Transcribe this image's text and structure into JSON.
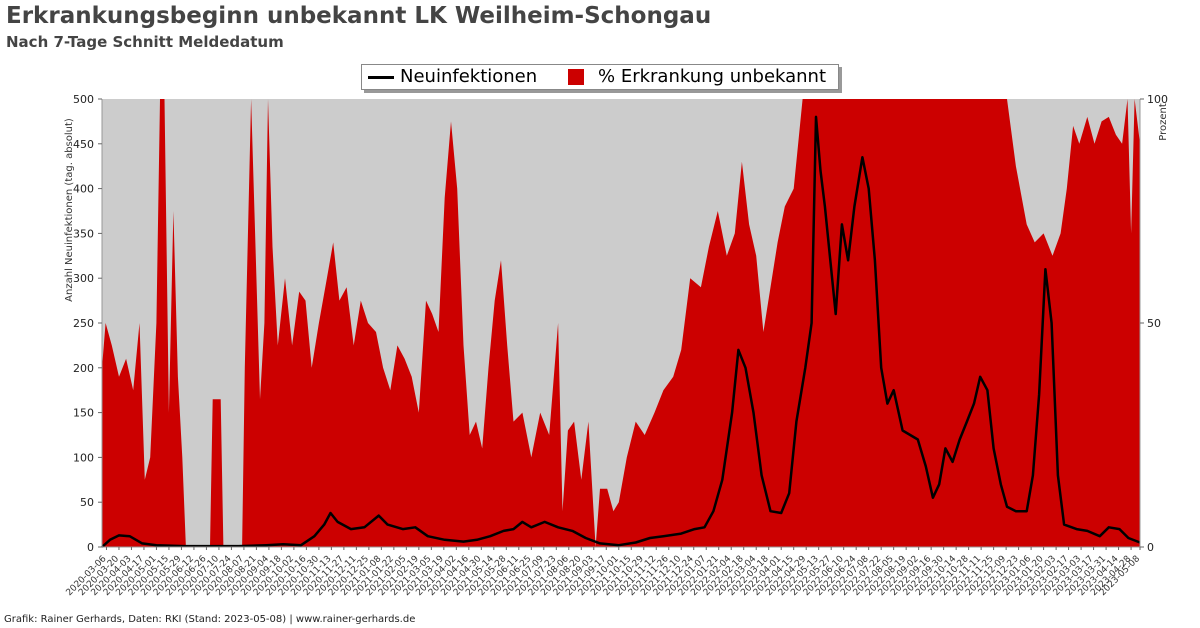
{
  "title": "Erkrankungsbeginn unbekannt LK Weilheim-Schongau",
  "subtitle": "Nach 7-Tage Schnitt Meldedatum",
  "footer": "Grafik: Rainer Gerhards, Daten: RKI (Stand: 2023-05-08) | www.rainer-gerhards.de",
  "legend": {
    "line": "Neuinfektionen",
    "area": "% Erkrankung unbekannt"
  },
  "colors": {
    "plot_bg": "#cccccc",
    "area": "#cc0000",
    "line": "#000000"
  },
  "chart_data": {
    "type": "line",
    "ylabel": "Anzahl Neuinfektionen (tag. absolut)",
    "y2label": "Prozent",
    "ylim": [
      0,
      500
    ],
    "y2lim": [
      0,
      100
    ],
    "yticks": [
      0,
      50,
      100,
      150,
      200,
      250,
      300,
      350,
      400,
      450,
      500
    ],
    "y2ticks": [
      0,
      50,
      100
    ],
    "x_range": [
      "2020-03-01",
      "2023-05-08"
    ],
    "grid": false,
    "series": [
      {
        "name": "Neuinfektionen",
        "axis": "left",
        "points": [
          [
            "2020-03-01",
            0
          ],
          [
            "2020-03-10",
            8
          ],
          [
            "2020-03-20",
            13
          ],
          [
            "2020-04-01",
            12
          ],
          [
            "2020-04-15",
            4
          ],
          [
            "2020-05-01",
            2
          ],
          [
            "2020-06-01",
            1
          ],
          [
            "2020-07-01",
            1
          ],
          [
            "2020-08-01",
            1
          ],
          [
            "2020-09-01",
            2
          ],
          [
            "2020-09-20",
            3
          ],
          [
            "2020-10-10",
            2
          ],
          [
            "2020-10-25",
            12
          ],
          [
            "2020-11-05",
            25
          ],
          [
            "2020-11-12",
            38
          ],
          [
            "2020-11-20",
            28
          ],
          [
            "2020-12-05",
            20
          ],
          [
            "2020-12-20",
            22
          ],
          [
            "2021-01-05",
            35
          ],
          [
            "2021-01-15",
            25
          ],
          [
            "2021-02-01",
            20
          ],
          [
            "2021-02-15",
            22
          ],
          [
            "2021-03-01",
            12
          ],
          [
            "2021-03-20",
            8
          ],
          [
            "2021-04-10",
            6
          ],
          [
            "2021-04-25",
            8
          ],
          [
            "2021-05-10",
            12
          ],
          [
            "2021-05-25",
            18
          ],
          [
            "2021-06-05",
            20
          ],
          [
            "2021-06-15",
            28
          ],
          [
            "2021-06-25",
            22
          ],
          [
            "2021-07-10",
            28
          ],
          [
            "2021-07-25",
            22
          ],
          [
            "2021-08-10",
            18
          ],
          [
            "2021-08-25",
            10
          ],
          [
            "2021-09-10",
            4
          ],
          [
            "2021-10-01",
            2
          ],
          [
            "2021-10-20",
            5
          ],
          [
            "2021-11-05",
            10
          ],
          [
            "2021-11-20",
            12
          ],
          [
            "2021-12-10",
            15
          ],
          [
            "2021-12-25",
            20
          ],
          [
            "2022-01-05",
            22
          ],
          [
            "2022-01-15",
            40
          ],
          [
            "2022-01-25",
            75
          ],
          [
            "2022-02-05",
            150
          ],
          [
            "2022-02-12",
            220
          ],
          [
            "2022-02-20",
            200
          ],
          [
            "2022-03-01",
            150
          ],
          [
            "2022-03-10",
            80
          ],
          [
            "2022-03-20",
            40
          ],
          [
            "2022-04-01",
            38
          ],
          [
            "2022-04-10",
            60
          ],
          [
            "2022-04-18",
            140
          ],
          [
            "2022-04-28",
            200
          ],
          [
            "2022-05-05",
            250
          ],
          [
            "2022-05-10",
            480
          ],
          [
            "2022-05-15",
            420
          ],
          [
            "2022-05-20",
            380
          ],
          [
            "2022-05-25",
            330
          ],
          [
            "2022-06-01",
            260
          ],
          [
            "2022-06-08",
            360
          ],
          [
            "2022-06-15",
            320
          ],
          [
            "2022-06-22",
            380
          ],
          [
            "2022-07-01",
            435
          ],
          [
            "2022-07-08",
            400
          ],
          [
            "2022-07-15",
            320
          ],
          [
            "2022-07-22",
            200
          ],
          [
            "2022-07-29",
            160
          ],
          [
            "2022-08-05",
            175
          ],
          [
            "2022-08-15",
            130
          ],
          [
            "2022-09-01",
            120
          ],
          [
            "2022-09-10",
            90
          ],
          [
            "2022-09-18",
            55
          ],
          [
            "2022-09-25",
            70
          ],
          [
            "2022-10-02",
            110
          ],
          [
            "2022-10-10",
            95
          ],
          [
            "2022-10-18",
            120
          ],
          [
            "2022-10-26",
            140
          ],
          [
            "2022-11-03",
            160
          ],
          [
            "2022-11-10",
            190
          ],
          [
            "2022-11-18",
            175
          ],
          [
            "2022-11-25",
            110
          ],
          [
            "2022-12-03",
            70
          ],
          [
            "2022-12-10",
            45
          ],
          [
            "2022-12-20",
            40
          ],
          [
            "2023-01-01",
            40
          ],
          [
            "2023-01-08",
            80
          ],
          [
            "2023-01-15",
            170
          ],
          [
            "2023-01-22",
            310
          ],
          [
            "2023-01-29",
            250
          ],
          [
            "2023-02-05",
            80
          ],
          [
            "2023-02-12",
            25
          ],
          [
            "2023-02-26",
            20
          ],
          [
            "2023-03-10",
            18
          ],
          [
            "2023-03-24",
            12
          ],
          [
            "2023-04-03",
            22
          ],
          [
            "2023-04-15",
            20
          ],
          [
            "2023-04-25",
            10
          ],
          [
            "2023-05-08",
            5
          ]
        ]
      },
      {
        "name": "% Erkrankung unbekannt",
        "axis": "right",
        "points": [
          [
            "2020-03-01",
            40
          ],
          [
            "2020-03-05",
            50
          ],
          [
            "2020-03-12",
            45
          ],
          [
            "2020-03-20",
            38
          ],
          [
            "2020-03-28",
            42
          ],
          [
            "2020-04-05",
            35
          ],
          [
            "2020-04-12",
            50
          ],
          [
            "2020-04-18",
            15
          ],
          [
            "2020-04-24",
            20
          ],
          [
            "2020-05-01",
            50
          ],
          [
            "2020-05-05",
            100
          ],
          [
            "2020-05-10",
            100
          ],
          [
            "2020-05-15",
            30
          ],
          [
            "2020-05-20",
            75
          ],
          [
            "2020-05-25",
            38
          ],
          [
            "2020-05-30",
            20
          ],
          [
            "2020-06-03",
            0
          ],
          [
            "2020-06-30",
            0
          ],
          [
            "2020-07-03",
            33
          ],
          [
            "2020-07-12",
            33
          ],
          [
            "2020-07-15",
            0
          ],
          [
            "2020-08-05",
            0
          ],
          [
            "2020-08-08",
            40
          ],
          [
            "2020-08-15",
            100
          ],
          [
            "2020-08-20",
            67
          ],
          [
            "2020-08-25",
            33
          ],
          [
            "2020-08-30",
            50
          ],
          [
            "2020-09-03",
            100
          ],
          [
            "2020-09-08",
            67
          ],
          [
            "2020-09-14",
            45
          ],
          [
            "2020-09-22",
            60
          ],
          [
            "2020-09-30",
            45
          ],
          [
            "2020-10-08",
            57
          ],
          [
            "2020-10-15",
            55
          ],
          [
            "2020-10-22",
            40
          ],
          [
            "2020-10-30",
            50
          ],
          [
            "2020-11-08",
            60
          ],
          [
            "2020-11-15",
            68
          ],
          [
            "2020-11-22",
            55
          ],
          [
            "2020-11-30",
            58
          ],
          [
            "2020-12-08",
            45
          ],
          [
            "2020-12-16",
            55
          ],
          [
            "2020-12-24",
            50
          ],
          [
            "2021-01-02",
            48
          ],
          [
            "2021-01-10",
            40
          ],
          [
            "2021-01-18",
            35
          ],
          [
            "2021-01-26",
            45
          ],
          [
            "2021-02-03",
            42
          ],
          [
            "2021-02-11",
            38
          ],
          [
            "2021-02-19",
            30
          ],
          [
            "2021-02-27",
            55
          ],
          [
            "2021-03-06",
            52
          ],
          [
            "2021-03-13",
            48
          ],
          [
            "2021-03-20",
            78
          ],
          [
            "2021-03-27",
            95
          ],
          [
            "2021-04-03",
            80
          ],
          [
            "2021-04-10",
            45
          ],
          [
            "2021-04-17",
            25
          ],
          [
            "2021-04-24",
            28
          ],
          [
            "2021-05-01",
            22
          ],
          [
            "2021-05-08",
            40
          ],
          [
            "2021-05-15",
            55
          ],
          [
            "2021-05-22",
            64
          ],
          [
            "2021-05-29",
            45
          ],
          [
            "2021-06-05",
            28
          ],
          [
            "2021-06-15",
            30
          ],
          [
            "2021-06-25",
            20
          ],
          [
            "2021-07-05",
            30
          ],
          [
            "2021-07-15",
            25
          ],
          [
            "2021-07-25",
            50
          ],
          [
            "2021-07-30",
            8
          ],
          [
            "2021-08-05",
            26
          ],
          [
            "2021-08-12",
            28
          ],
          [
            "2021-08-20",
            15
          ],
          [
            "2021-08-28",
            28
          ],
          [
            "2021-09-05",
            0
          ],
          [
            "2021-09-10",
            13
          ],
          [
            "2021-09-18",
            13
          ],
          [
            "2021-09-25",
            8
          ],
          [
            "2021-10-01",
            10
          ],
          [
            "2021-10-10",
            20
          ],
          [
            "2021-10-20",
            28
          ],
          [
            "2021-10-30",
            25
          ],
          [
            "2021-11-10",
            30
          ],
          [
            "2021-11-20",
            35
          ],
          [
            "2021-12-01",
            38
          ],
          [
            "2021-12-10",
            44
          ],
          [
            "2021-12-20",
            60
          ],
          [
            "2022-01-01",
            58
          ],
          [
            "2022-01-10",
            67
          ],
          [
            "2022-01-20",
            75
          ],
          [
            "2022-01-30",
            65
          ],
          [
            "2022-02-08",
            70
          ],
          [
            "2022-02-16",
            86
          ],
          [
            "2022-02-24",
            72
          ],
          [
            "2022-03-04",
            65
          ],
          [
            "2022-03-12",
            48
          ],
          [
            "2022-03-20",
            58
          ],
          [
            "2022-03-28",
            68
          ],
          [
            "2022-04-05",
            76
          ],
          [
            "2022-04-15",
            80
          ],
          [
            "2022-04-25",
            100
          ],
          [
            "2022-06-15",
            100
          ],
          [
            "2022-08-01",
            100
          ],
          [
            "2022-09-15",
            100
          ],
          [
            "2022-11-01",
            100
          ],
          [
            "2022-12-10",
            100
          ],
          [
            "2022-12-20",
            85
          ],
          [
            "2023-01-01",
            72
          ],
          [
            "2023-01-10",
            68
          ],
          [
            "2023-01-20",
            70
          ],
          [
            "2023-01-30",
            65
          ],
          [
            "2023-02-08",
            70
          ],
          [
            "2023-02-15",
            80
          ],
          [
            "2023-02-22",
            94
          ],
          [
            "2023-03-01",
            90
          ],
          [
            "2023-03-10",
            96
          ],
          [
            "2023-03-18",
            90
          ],
          [
            "2023-03-26",
            95
          ],
          [
            "2023-04-03",
            96
          ],
          [
            "2023-04-11",
            92
          ],
          [
            "2023-04-18",
            90
          ],
          [
            "2023-04-24",
            100
          ],
          [
            "2023-04-28",
            70
          ],
          [
            "2023-05-02",
            100
          ],
          [
            "2023-05-08",
            90
          ]
        ]
      }
    ],
    "xtick_labels": [
      "2020-03-06",
      "2020-03-20",
      "2020-04-03",
      "2020-04-17",
      "2020-05-01",
      "2020-05-15",
      "2020-05-29",
      "2020-06-12",
      "2020-06-26",
      "2020-07-10",
      "2020-07-24",
      "2020-08-07",
      "2020-08-21",
      "2020-09-04",
      "2020-09-18",
      "2020-10-02",
      "2020-10-16",
      "2020-10-30",
      "2020-11-13",
      "2020-11-27",
      "2020-12-11",
      "2020-12-25",
      "2021-01-08",
      "2021-01-22",
      "2021-02-05",
      "2021-02-19",
      "2021-03-05",
      "2021-03-19",
      "2021-04-02",
      "2021-04-16",
      "2021-04-30",
      "2021-05-14",
      "2021-05-28",
      "2021-06-11",
      "2021-06-25",
      "2021-07-09",
      "2021-07-23",
      "2021-08-06",
      "2021-08-20",
      "2021-09-03",
      "2021-09-17",
      "2021-10-01",
      "2021-10-15",
      "2021-10-29",
      "2021-11-12",
      "2021-11-26",
      "2021-12-10",
      "2021-12-24",
      "2022-01-07",
      "2022-01-21",
      "2022-02-04",
      "2022-02-18",
      "2022-03-04",
      "2022-03-18",
      "2022-04-01",
      "2022-04-15",
      "2022-04-29",
      "2022-05-13",
      "2022-05-27",
      "2022-06-10",
      "2022-06-24",
      "2022-07-08",
      "2022-07-22",
      "2022-08-05",
      "2022-08-19",
      "2022-09-02",
      "2022-09-16",
      "2022-09-30",
      "2022-10-14",
      "2022-10-28",
      "2022-11-11",
      "2022-11-25",
      "2022-12-09",
      "2022-12-23",
      "2023-01-06",
      "2023-01-20",
      "2023-02-03",
      "2023-02-17",
      "2023-03-03",
      "2023-03-17",
      "2023-03-31",
      "2023-04-14",
      "2023-04-28",
      "2023-05-08"
    ]
  }
}
